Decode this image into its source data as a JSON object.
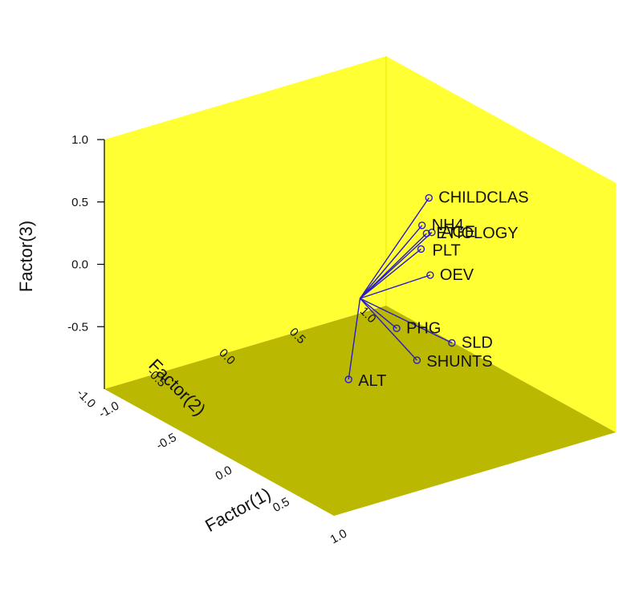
{
  "chart_data": {
    "type": "scatter",
    "subtype": "3d-loading-plot",
    "axes": {
      "x": {
        "label": "Factor(1)",
        "range": [
          -1.0,
          1.0
        ],
        "ticks": [
          -1.0,
          -0.5,
          0.0,
          0.5,
          1.0
        ],
        "tick_labels": [
          "-1.0",
          "-0.5",
          "0.0",
          "0.5",
          "1.0"
        ]
      },
      "y": {
        "label": "Factor(2)",
        "range": [
          -1.0,
          1.0
        ],
        "ticks": [
          -1.0,
          -0.5,
          0.0,
          0.5,
          1.0
        ],
        "tick_labels": [
          "-1.0",
          "-0.5",
          "0.0",
          "0.5",
          "1.0"
        ]
      },
      "z": {
        "label": "Factor(3)",
        "range": [
          -1.0,
          1.0
        ],
        "ticks": [
          -0.5,
          0.0,
          0.5,
          1.0
        ],
        "tick_labels": [
          "-0.5",
          "0.0",
          "0.5",
          "1.0"
        ]
      }
    },
    "origin": [
      0.0,
      0.0,
      -0.1
    ],
    "points": [
      {
        "label": "CHILDCLAS",
        "x": 0.33,
        "y": 0.22,
        "z": 0.8
      },
      {
        "label": "NH4",
        "x": 0.27,
        "y": 0.22,
        "z": 0.55
      },
      {
        "label": "ETIOLOGY",
        "x": 0.15,
        "y": 0.35,
        "z": 0.38
      },
      {
        "label": "OEV",
        "x": 0.55,
        "y": 0.05,
        "z": 0.35
      },
      {
        "label": "AGE",
        "x": -0.05,
        "y": 0.55,
        "z": 0.22
      },
      {
        "label": "SLD",
        "x": 0.8,
        "y": 0.0,
        "z": -0.05
      },
      {
        "label": "PHG",
        "x": 0.38,
        "y": -0.05,
        "z": -0.13
      },
      {
        "label": "SHUNTS",
        "x": 0.68,
        "y": -0.15,
        "z": -0.2
      },
      {
        "label": "PLT",
        "x": -0.45,
        "y": 0.8,
        "z": -0.2
      },
      {
        "label": "ALT",
        "x": -0.1,
        "y": 0.0,
        "z": -0.8
      }
    ],
    "colors": {
      "back_walls": "#ffff33",
      "floor": "#bab800",
      "vectors": "#2a1cc8",
      "text": "#111111"
    }
  }
}
